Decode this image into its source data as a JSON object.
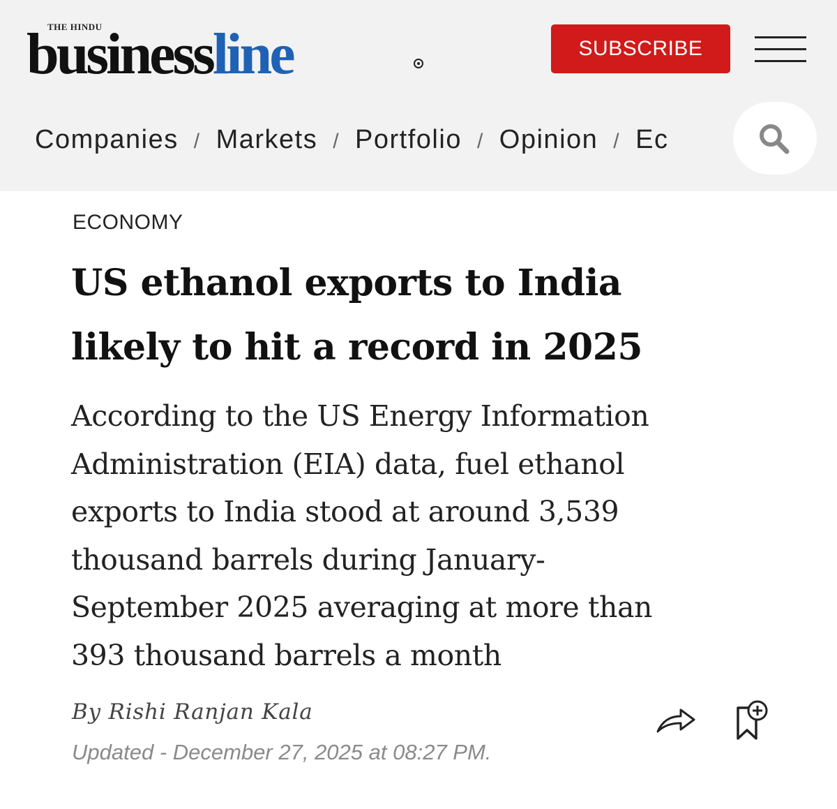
{
  "header": {
    "logo_top": "THE HINDU",
    "logo_business": "business",
    "logo_line": "line",
    "subscribe_label": "SUBSCRIBE"
  },
  "nav": {
    "items": [
      "Companies",
      "Markets",
      "Portfolio",
      "Opinion",
      "Ec"
    ],
    "separator": "/"
  },
  "article": {
    "section": "ECONOMY",
    "headline_line1": "US ethanol exports to India",
    "headline_line2": "likely to hit a record in 2025",
    "standfirst_lines": [
      "According to the US Energy Information",
      "Administration (EIA) data, fuel ethanol",
      "exports to India stood at around 3,539",
      "thousand barrels during January-",
      "September 2025 averaging at more than",
      "393 thousand barrels a month"
    ],
    "byline": "By Rishi Ranjan Kala",
    "updated": "Updated - December 27, 2025 at 08:27 PM."
  },
  "icons": {
    "search": "search-icon",
    "menu": "hamburger-menu-icon",
    "share": "share-icon",
    "bookmark": "bookmark-add-icon"
  },
  "colors": {
    "brand_blue": "#1f62b5",
    "subscribe_red": "#d11a1a",
    "masthead_bg": "#f2f2f2"
  }
}
